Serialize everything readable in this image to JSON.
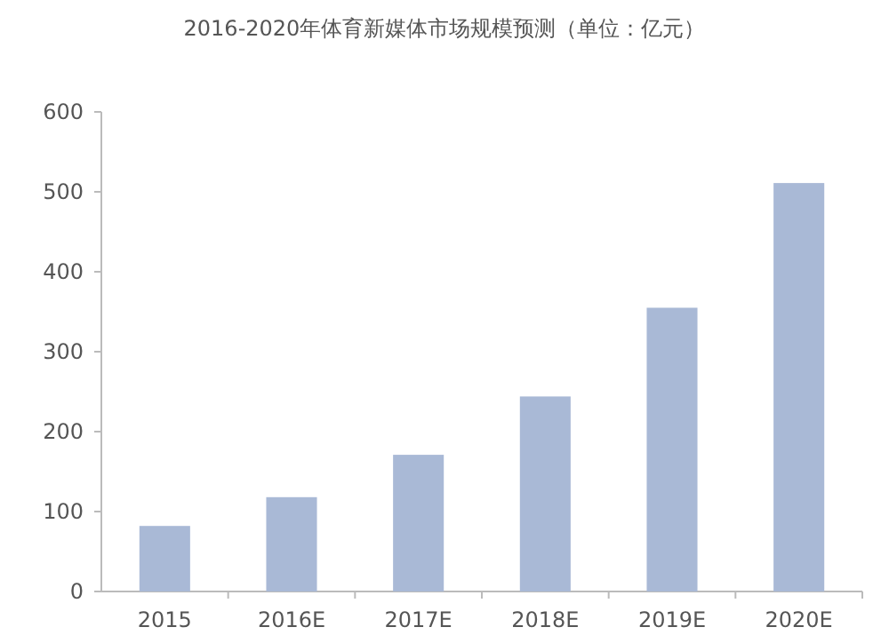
{
  "chart_data": {
    "type": "bar",
    "title": "2016-2020年体育新媒体市场规模预测（单位：亿元）",
    "categories": [
      "2015",
      "2016E",
      "2017E",
      "2018E",
      "2019E",
      "2020E"
    ],
    "values": [
      82,
      118,
      171,
      244,
      355,
      511
    ],
    "color": "#a9b9d6",
    "ylim": [
      0,
      600
    ],
    "yticks": [
      0,
      100,
      200,
      300,
      400,
      500,
      600
    ],
    "grid": false
  }
}
